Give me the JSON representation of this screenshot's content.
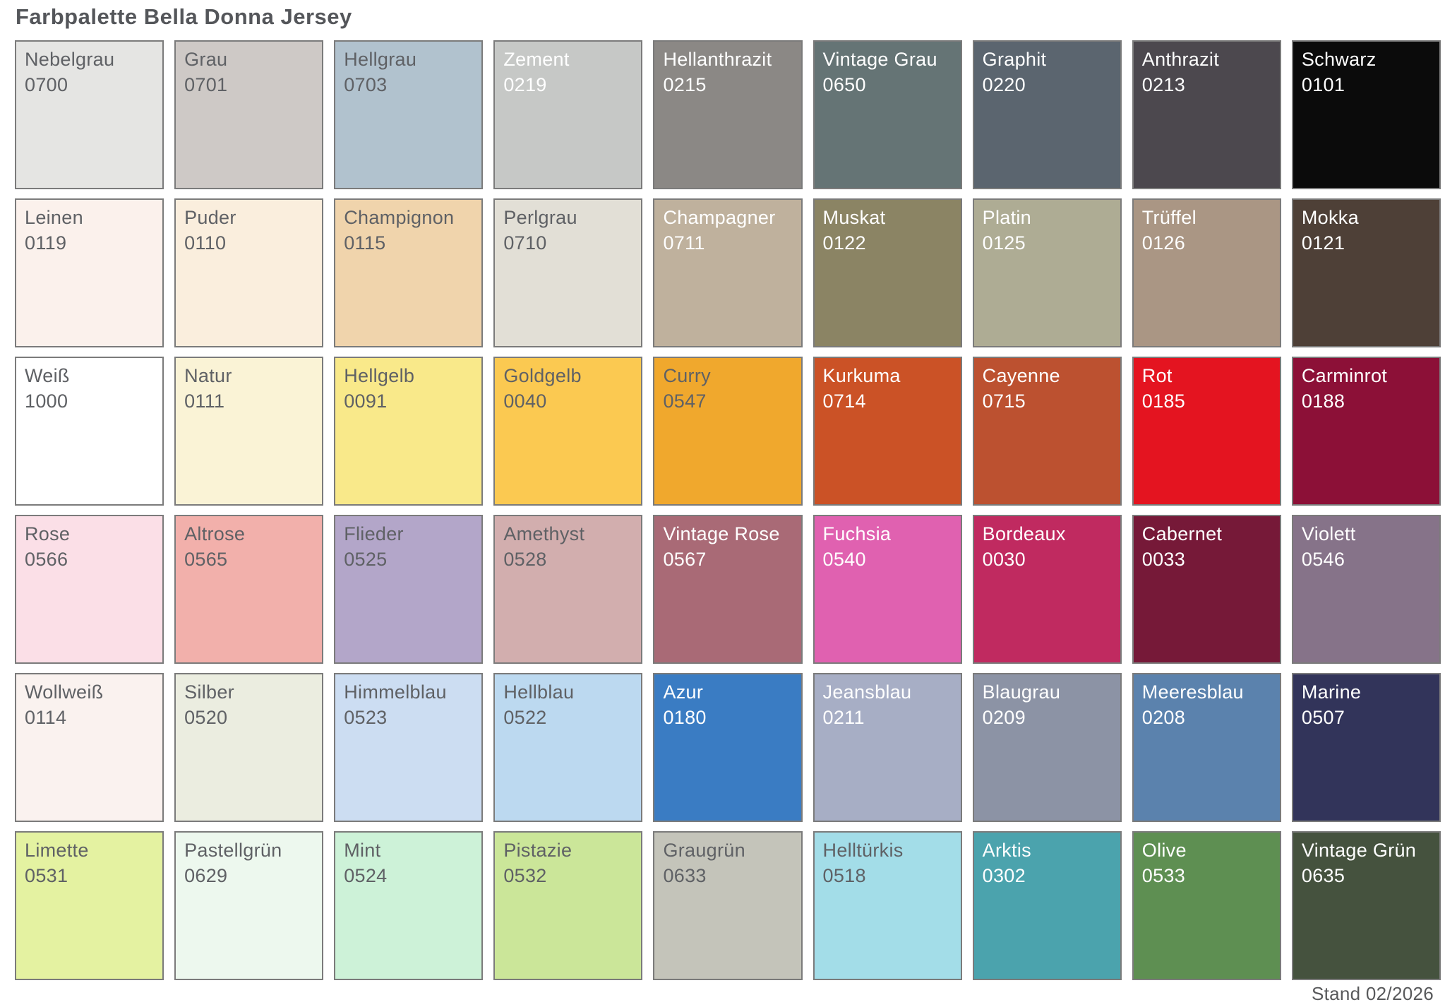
{
  "title": "Farbpalette Bella Donna Jersey",
  "footer": "Stand 02/2026",
  "palette": {
    "columns": 9,
    "rows": 6,
    "border_color": "#7b7b7b",
    "dark_text_color": "#5f6165",
    "light_text_color": "#ffffff",
    "swatches": [
      {
        "name": "Nebelgrau",
        "code": "0700",
        "color": "#e5e5e3",
        "text": "dark"
      },
      {
        "name": "Grau",
        "code": "0701",
        "color": "#cec9c6",
        "text": "dark"
      },
      {
        "name": "Hellgrau",
        "code": "0703",
        "color": "#b1c2ce",
        "text": "dark"
      },
      {
        "name": "Zement",
        "code": "0219",
        "color": "#c6c8c6",
        "text": "light"
      },
      {
        "name": "Hellanthrazit",
        "code": "0215",
        "color": "#8b8885",
        "text": "light"
      },
      {
        "name": "Vintage Grau",
        "code": "0650",
        "color": "#657475",
        "text": "light"
      },
      {
        "name": "Graphit",
        "code": "0220",
        "color": "#5b656f",
        "text": "light"
      },
      {
        "name": "Anthrazit",
        "code": "0213",
        "color": "#4c484e",
        "text": "light"
      },
      {
        "name": "Schwarz",
        "code": "0101",
        "color": "#0b0b0b",
        "text": "light"
      },
      {
        "name": "Leinen",
        "code": "0119",
        "color": "#fbf1ec",
        "text": "dark"
      },
      {
        "name": "Puder",
        "code": "0110",
        "color": "#faeedd",
        "text": "dark"
      },
      {
        "name": "Champignon",
        "code": "0115",
        "color": "#f0d4ac",
        "text": "dark"
      },
      {
        "name": "Perlgrau",
        "code": "0710",
        "color": "#e2dfd6",
        "text": "dark"
      },
      {
        "name": "Champagner",
        "code": "0711",
        "color": "#bfb19d",
        "text": "light"
      },
      {
        "name": "Muskat",
        "code": "0122",
        "color": "#8b8464",
        "text": "light"
      },
      {
        "name": "Platin",
        "code": "0125",
        "color": "#aeac94",
        "text": "light"
      },
      {
        "name": "Trüffel",
        "code": "0126",
        "color": "#aa9684",
        "text": "light"
      },
      {
        "name": "Mokka",
        "code": "0121",
        "color": "#4e4037",
        "text": "light"
      },
      {
        "name": "Weiß",
        "code": "1000",
        "color": "#ffffff",
        "text": "dark"
      },
      {
        "name": "Natur",
        "code": "0111",
        "color": "#faf3d6",
        "text": "dark"
      },
      {
        "name": "Hellgelb",
        "code": "0091",
        "color": "#f9e98a",
        "text": "dark"
      },
      {
        "name": "Goldgelb",
        "code": "0040",
        "color": "#fbc951",
        "text": "dark"
      },
      {
        "name": "Curry",
        "code": "0547",
        "color": "#f0a82d",
        "text": "dark"
      },
      {
        "name": "Kurkuma",
        "code": "0714",
        "color": "#cb5226",
        "text": "light"
      },
      {
        "name": "Cayenne",
        "code": "0715",
        "color": "#bc5130",
        "text": "light"
      },
      {
        "name": "Rot",
        "code": "0185",
        "color": "#e41420",
        "text": "light"
      },
      {
        "name": "Carminrot",
        "code": "0188",
        "color": "#8c1037",
        "text": "light"
      },
      {
        "name": "Rose",
        "code": "0566",
        "color": "#fbdfe7",
        "text": "dark"
      },
      {
        "name": "Altrose",
        "code": "0565",
        "color": "#f2b0ab",
        "text": "dark"
      },
      {
        "name": "Flieder",
        "code": "0525",
        "color": "#b3a6c9",
        "text": "dark"
      },
      {
        "name": "Amethyst",
        "code": "0528",
        "color": "#d2aeae",
        "text": "dark"
      },
      {
        "name": "Vintage Rose",
        "code": "0567",
        "color": "#a96a76",
        "text": "light"
      },
      {
        "name": "Fuchsia",
        "code": "0540",
        "color": "#e061b0",
        "text": "light"
      },
      {
        "name": "Bordeaux",
        "code": "0030",
        "color": "#c02a60",
        "text": "light"
      },
      {
        "name": "Cabernet",
        "code": "0033",
        "color": "#761938",
        "text": "light"
      },
      {
        "name": "Violett",
        "code": "0546",
        "color": "#867389",
        "text": "light"
      },
      {
        "name": "Wollweiß",
        "code": "0114",
        "color": "#faf2ef",
        "text": "dark"
      },
      {
        "name": "Silber",
        "code": "0520",
        "color": "#ebede0",
        "text": "dark"
      },
      {
        "name": "Himmelblau",
        "code": "0523",
        "color": "#ccddf2",
        "text": "dark"
      },
      {
        "name": "Hellblau",
        "code": "0522",
        "color": "#bcd9f0",
        "text": "dark"
      },
      {
        "name": "Azur",
        "code": "0180",
        "color": "#3a7cc3",
        "text": "light"
      },
      {
        "name": "Jeansblau",
        "code": "0211",
        "color": "#a7aec5",
        "text": "light"
      },
      {
        "name": "Blaugrau",
        "code": "0209",
        "color": "#8c93a5",
        "text": "light"
      },
      {
        "name": "Meeresblau",
        "code": "0208",
        "color": "#5b82ad",
        "text": "light"
      },
      {
        "name": "Marine",
        "code": "0507",
        "color": "#32345a",
        "text": "light"
      },
      {
        "name": "Limette",
        "code": "0531",
        "color": "#e4f2a1",
        "text": "dark"
      },
      {
        "name": "Pastellgrün",
        "code": "0629",
        "color": "#edf8ee",
        "text": "dark"
      },
      {
        "name": "Mint",
        "code": "0524",
        "color": "#cdf2d8",
        "text": "dark"
      },
      {
        "name": "Pistazie",
        "code": "0532",
        "color": "#cbe699",
        "text": "dark"
      },
      {
        "name": "Graugrün",
        "code": "0633",
        "color": "#c4c4ba",
        "text": "dark"
      },
      {
        "name": "Helltürkis",
        "code": "0518",
        "color": "#a3dde8",
        "text": "dark"
      },
      {
        "name": "Arktis",
        "code": "0302",
        "color": "#4ba3ad",
        "text": "light"
      },
      {
        "name": "Olive",
        "code": "0533",
        "color": "#5e8f52",
        "text": "light"
      },
      {
        "name": "Vintage Grün",
        "code": "0635",
        "color": "#45523e",
        "text": "light"
      }
    ]
  }
}
